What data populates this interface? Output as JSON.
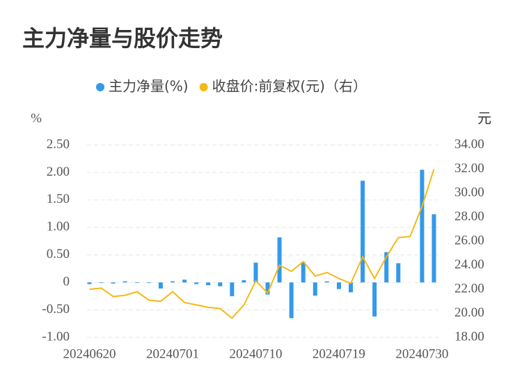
{
  "chart_data": {
    "type": "bar_line",
    "title": "主力净量与股价走势",
    "y_unit": "%",
    "y2_unit": "元",
    "categories": [
      "20240620",
      null,
      null,
      null,
      null,
      null,
      null,
      "20240701",
      null,
      null,
      null,
      null,
      null,
      null,
      "20240710",
      null,
      null,
      null,
      null,
      null,
      null,
      "20240719",
      null,
      null,
      null,
      null,
      null,
      null,
      "20240730",
      null
    ],
    "series": [
      {
        "name": "主力净量(%)",
        "type": "bar",
        "color": "#3399ea",
        "values": [
          -0.03,
          -0.01,
          -0.02,
          0.02,
          -0.01,
          -0.01,
          -0.11,
          0.02,
          0.05,
          -0.03,
          -0.05,
          -0.07,
          -0.25,
          0.04,
          0.36,
          -0.22,
          0.82,
          -0.65,
          0.37,
          -0.24,
          0.02,
          -0.12,
          -0.18,
          1.85,
          -0.62,
          0.55,
          0.35,
          0.0,
          2.05,
          1.24
        ]
      },
      {
        "name": "收盘价:前复权(元)（右）",
        "type": "line",
        "axis": "y2",
        "color": "#f5b815",
        "values": [
          22.0,
          22.1,
          21.4,
          21.5,
          21.8,
          21.1,
          21.0,
          21.8,
          20.9,
          20.7,
          20.5,
          20.4,
          19.6,
          20.7,
          22.7,
          21.7,
          24.0,
          23.5,
          24.3,
          23.1,
          23.4,
          22.9,
          22.5,
          24.7,
          22.9,
          24.7,
          26.3,
          26.4,
          28.9,
          32.0
        ]
      }
    ],
    "ylim": [
      -1,
      2.5
    ],
    "yticks": [
      {
        "value": -1,
        "label": "-1.00"
      },
      {
        "value": -0.5,
        "label": "-0.50"
      },
      0,
      {
        "value": 0.5,
        "label": "0.50"
      },
      {
        "value": 1,
        "label": "1.00"
      },
      {
        "value": 1.5,
        "label": "1.50"
      },
      {
        "value": 2,
        "label": "2.00"
      },
      {
        "value": 2.5,
        "label": "2.50"
      }
    ],
    "y2lim": [
      18,
      34
    ],
    "y2ticks": [
      {
        "value": 18,
        "label": "18.00"
      },
      {
        "value": 20,
        "label": "20.00"
      },
      {
        "value": 22,
        "label": "22.00"
      },
      {
        "value": 24,
        "label": "24.00"
      },
      {
        "value": 26,
        "label": "26.00"
      },
      {
        "value": 28,
        "label": "28.00"
      },
      {
        "value": 30,
        "label": "30.00"
      },
      {
        "value": 32,
        "label": "32.00"
      },
      {
        "value": 34,
        "label": "34.00"
      }
    ],
    "grid": true,
    "legend": "top"
  }
}
